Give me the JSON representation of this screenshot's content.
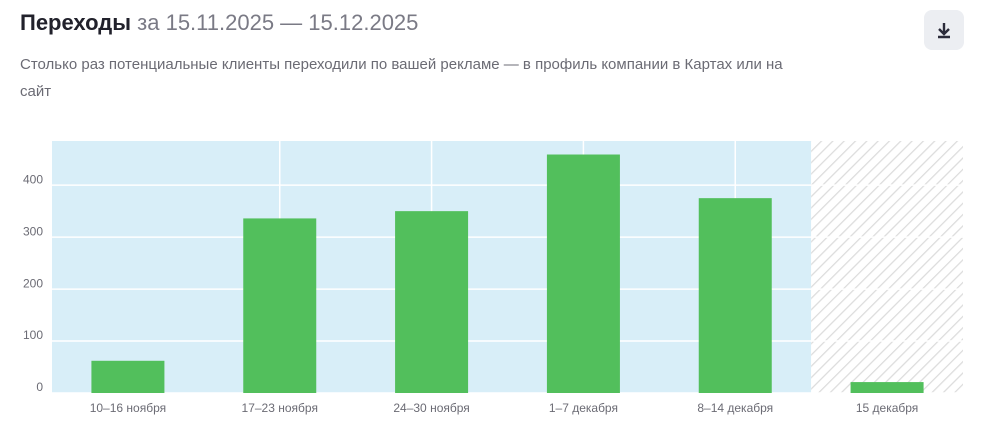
{
  "header": {
    "title": "Переходы",
    "period": "за 15.11.2025 — 15.12.2025",
    "subtitle": "Столько раз потенциальные клиенты переходили по вашей рекламе — в профиль компании в Картах или на сайт"
  },
  "chart_data": {
    "type": "bar",
    "categories": [
      "10–16 ноября",
      "17–23 ноября",
      "24–30 ноября",
      "1–7 декабря",
      "8–14 декабря",
      "15 декабря"
    ],
    "values": [
      62,
      336,
      350,
      459,
      375,
      21
    ],
    "color": "#52bf5c",
    "ylim": [
      0,
      485
    ],
    "yticks": [
      0,
      100,
      200,
      300,
      400
    ],
    "grid": true,
    "hatched_last": true
  }
}
